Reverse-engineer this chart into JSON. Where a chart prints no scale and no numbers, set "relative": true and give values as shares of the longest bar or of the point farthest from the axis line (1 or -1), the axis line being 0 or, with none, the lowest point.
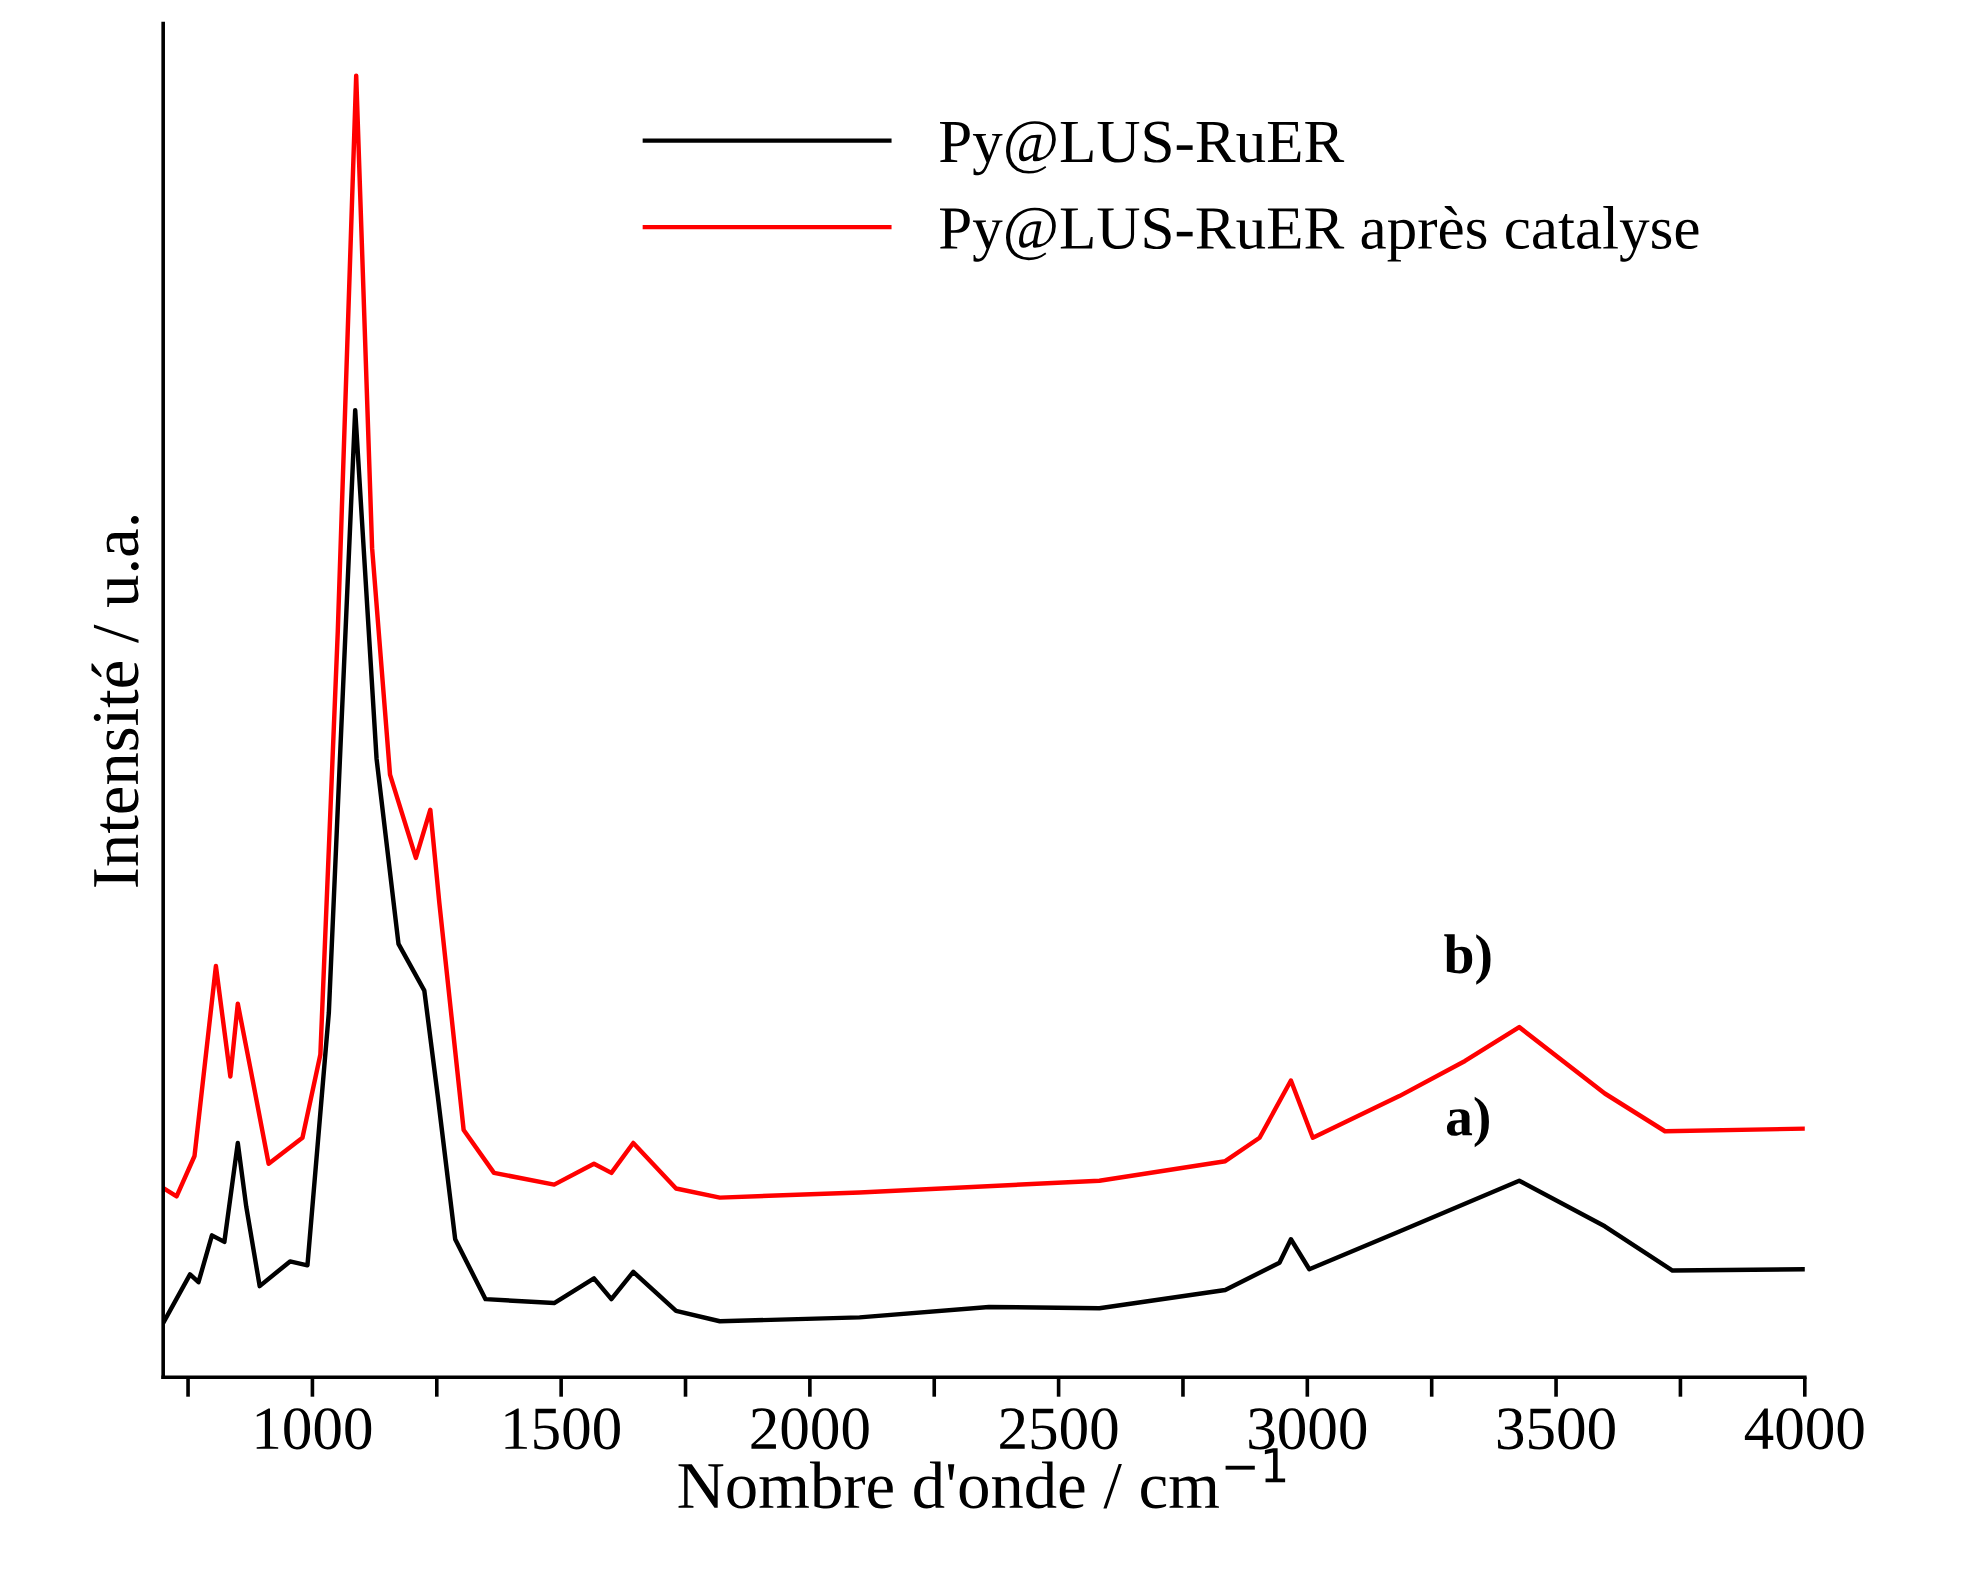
{
  "chart_data": {
    "type": "line",
    "relative": true,
    "xlabel": "Nombre d'onde / cm$^{−1}$",
    "ylabel": "Intensité / u.a.",
    "xlim": [
      700,
      4000
    ],
    "xticks": [
      {
        "value": 750,
        "label": null
      },
      1000,
      {
        "value": 1250,
        "label": null
      },
      1500,
      {
        "value": 1750,
        "label": null
      },
      2000,
      {
        "value": 2250,
        "label": null
      },
      2500,
      {
        "value": 2750,
        "label": null
      },
      3000,
      {
        "value": 3250,
        "label": null
      },
      3500,
      {
        "value": 3750,
        "label": null
      },
      4000
    ],
    "grid": false,
    "legend": "top right",
    "line_style": "solid",
    "marker": "none",
    "annotations": [
      "b)",
      "a)"
    ],
    "series": [
      {
        "name": "Py@LUS-RuER",
        "color": "#000000",
        "x": [
          702,
          754,
          771,
          798,
          823,
          850,
          867,
          894,
          955,
          990,
          1033,
          1086,
          1129,
          1173,
          1225,
          1252,
          1287,
          1348,
          1486,
          1566,
          1601,
          1645,
          1731,
          1819,
          2100,
          2360,
          2582,
          2835,
          2944,
          2967,
          3004,
          3185,
          3426,
          3598,
          3734,
          4000
        ],
        "values": [
          0.043,
          0.079,
          0.073,
          0.109,
          0.104,
          0.18,
          0.131,
          0.07,
          0.089,
          0.086,
          0.28,
          0.743,
          0.475,
          0.333,
          0.297,
          0.216,
          0.106,
          0.06,
          0.057,
          0.076,
          0.06,
          0.081,
          0.051,
          0.043,
          0.046,
          0.054,
          0.053,
          0.067,
          0.088,
          0.106,
          0.083,
          0.112,
          0.151,
          0.116,
          0.082,
          0.083
        ]
      },
      {
        "name": "Py@LUS-RuER après catalyse",
        "color": "#ff0000",
        "x": [
          702,
          727,
          763,
          806,
          835,
          850,
          876,
          912,
          980,
          1016,
          1051,
          1088,
          1120,
          1156,
          1208,
          1237,
          1255,
          1304,
          1365,
          1486,
          1566,
          1601,
          1645,
          1731,
          1819,
          2100,
          2582,
          2835,
          2904,
          2967,
          3011,
          3185,
          3317,
          3426,
          3598,
          3719,
          4000
        ],
        "values": [
          0.145,
          0.139,
          0.17,
          0.316,
          0.231,
          0.287,
          0.236,
          0.164,
          0.184,
          0.248,
          0.573,
          1.0,
          0.637,
          0.463,
          0.399,
          0.436,
          0.365,
          0.19,
          0.157,
          0.148,
          0.164,
          0.157,
          0.18,
          0.145,
          0.138,
          0.142,
          0.151,
          0.166,
          0.184,
          0.228,
          0.184,
          0.216,
          0.243,
          0.269,
          0.218,
          0.189,
          0.191
        ]
      }
    ]
  }
}
